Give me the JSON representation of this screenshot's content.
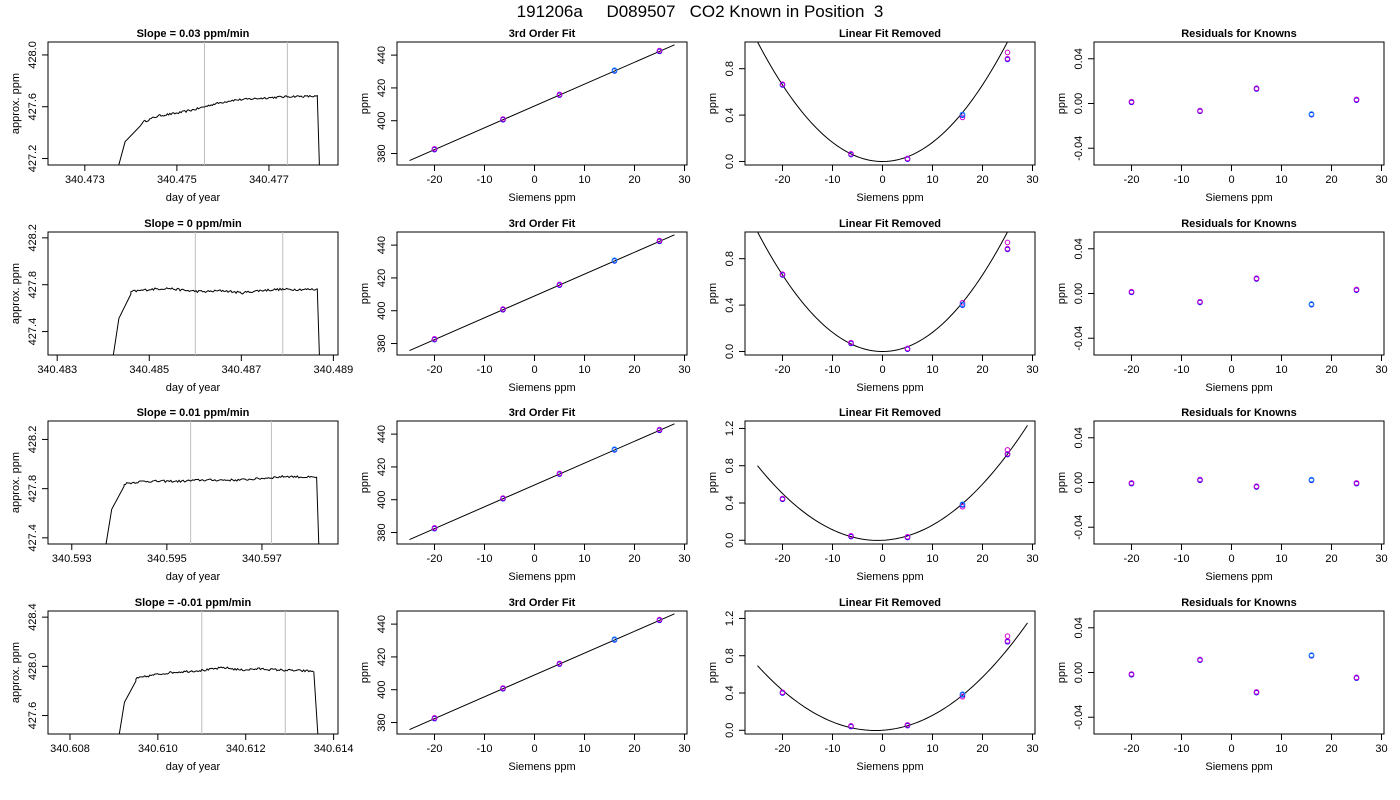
{
  "page_title": "191206a     D089507   CO2 Known in Position  3",
  "chart_data": [
    {
      "row": 1,
      "col": 1,
      "type": "line",
      "title": "Slope =  0.03  ppm/min",
      "xlabel": "day of year",
      "ylabel": "approx. ppm",
      "xlim": [
        340.4722,
        340.4785
      ],
      "ylim": [
        427.15,
        428.1
      ],
      "xticks": [
        340.473,
        340.475,
        340.477
      ],
      "xticklabels": [
        "340.473",
        "340.475",
        "340.477"
      ],
      "yticks": [
        427.2,
        427.6,
        428.0
      ],
      "yticklabels": [
        "427.2",
        "427.6",
        "428.0"
      ],
      "vlines": [
        340.4756,
        340.4774
      ],
      "rise_x": [
        340.4737,
        340.4742
      ],
      "rise_y": [
        427.15,
        427.45
      ],
      "plateau_start": 340.47425,
      "plateau_end": 340.47805,
      "plateau_points": [
        [
          340.47425,
          427.48
        ],
        [
          340.4746,
          427.53
        ],
        [
          340.475,
          427.55
        ],
        [
          340.4754,
          427.58
        ],
        [
          340.4758,
          427.62
        ],
        [
          340.4762,
          427.65
        ],
        [
          340.4766,
          427.66
        ],
        [
          340.477,
          427.67
        ],
        [
          340.4775,
          427.68
        ],
        [
          340.47805,
          427.68
        ]
      ],
      "drop_x": 340.4781,
      "noise": 0.008
    },
    {
      "row": 1,
      "col": 2,
      "type": "scatter",
      "title": "3rd Order Fit",
      "xlabel": "Siemens ppm",
      "ylabel": "ppm",
      "xlim": [
        -27.5,
        30.5
      ],
      "ylim": [
        373,
        448
      ],
      "xticks": [
        -20,
        -10,
        0,
        10,
        20,
        30
      ],
      "yticks": [
        380,
        400,
        420,
        440
      ],
      "curve": [
        [
          -25,
          375.7
        ],
        [
          28,
          446.3
        ]
      ],
      "points": [
        [
          -20,
          382.4
        ],
        [
          -6.3,
          400.6
        ],
        [
          5.0,
          415.6
        ],
        [
          16.0,
          430.4
        ],
        [
          25.0,
          442.3
        ]
      ]
    },
    {
      "row": 1,
      "col": 3,
      "type": "scatter",
      "title": "Linear Fit Removed",
      "xlabel": "Siemens ppm",
      "ylabel": "ppm",
      "xlim": [
        -27.5,
        30.5
      ],
      "ylim": [
        -0.03,
        1.03
      ],
      "xticks": [
        -20,
        -10,
        0,
        10,
        20,
        30
      ],
      "yticks": [
        0.0,
        0.4,
        0.8
      ],
      "yticklabels": [
        "0.0",
        "0.4",
        "0.8"
      ],
      "curve_coef": 0.00165,
      "curve_x": [
        -25,
        28
      ],
      "points": [
        [
          -20,
          0.66
        ],
        [
          -6.3,
          0.06
        ],
        [
          5.0,
          0.02
        ],
        [
          16.0,
          0.4
        ],
        [
          25.0,
          0.88
        ]
      ],
      "points_alt": [
        [
          16.0,
          0.38
        ],
        [
          25.0,
          0.94
        ]
      ]
    },
    {
      "row": 1,
      "col": 4,
      "type": "scatter",
      "title": "Residuals for Knowns",
      "xlabel": "Siemens ppm",
      "ylabel": "ppm",
      "xlim": [
        -27.5,
        30.5
      ],
      "ylim": [
        -0.055,
        0.055
      ],
      "xticks": [
        -20,
        -10,
        0,
        10,
        20,
        30
      ],
      "yticks": [
        -0.04,
        0.0,
        0.04
      ],
      "yticklabels": [
        "-0.04",
        "0.00",
        "0.04"
      ],
      "points": [
        [
          -20,
          0.001
        ],
        [
          -6.3,
          -0.007
        ],
        [
          5.0,
          0.013
        ],
        [
          16.0,
          -0.01
        ],
        [
          25.0,
          0.003
        ]
      ]
    },
    {
      "row": 2,
      "col": 1,
      "type": "line",
      "title": "Slope =  0  ppm/min",
      "xlabel": "day of year",
      "ylabel": "approx. ppm",
      "xlim": [
        340.4828,
        340.4891
      ],
      "ylim": [
        427.2,
        428.25
      ],
      "xticks": [
        340.483,
        340.485,
        340.487,
        340.489
      ],
      "xticklabels": [
        "340.483",
        "340.485",
        "340.487",
        "340.489"
      ],
      "yticks": [
        427.4,
        427.8,
        428.2
      ],
      "yticklabels": [
        "427.4",
        "427.8",
        "428.2"
      ],
      "vlines": [
        340.486,
        340.4879
      ],
      "rise_x": [
        340.4842,
        340.4846
      ],
      "rise_y": [
        427.2,
        427.72
      ],
      "plateau_start": 340.4846,
      "plateau_end": 340.48865,
      "plateau_points": [
        [
          340.4846,
          427.74
        ],
        [
          340.485,
          427.76
        ],
        [
          340.4854,
          427.77
        ],
        [
          340.4858,
          427.75
        ],
        [
          340.4862,
          427.74
        ],
        [
          340.4866,
          427.75
        ],
        [
          340.487,
          427.73
        ],
        [
          340.4874,
          427.75
        ],
        [
          340.4878,
          427.76
        ],
        [
          340.48865,
          427.76
        ]
      ],
      "drop_x": 340.4887,
      "noise": 0.01
    },
    {
      "row": 2,
      "col": 2,
      "type": "scatter",
      "title": "3rd Order Fit",
      "xlabel": "Siemens ppm",
      "ylabel": "ppm",
      "xlim": [
        -27.5,
        30.5
      ],
      "ylim": [
        373,
        448
      ],
      "xticks": [
        -20,
        -10,
        0,
        10,
        20,
        30
      ],
      "yticks": [
        380,
        400,
        420,
        440
      ],
      "curve": [
        [
          -25,
          375.7
        ],
        [
          28,
          446.3
        ]
      ],
      "points": [
        [
          -20,
          382.4
        ],
        [
          -6.3,
          400.6
        ],
        [
          5.0,
          415.6
        ],
        [
          16.0,
          430.4
        ],
        [
          25.0,
          442.3
        ]
      ]
    },
    {
      "row": 2,
      "col": 3,
      "type": "scatter",
      "title": "Linear Fit Removed",
      "xlabel": "Siemens ppm",
      "ylabel": "ppm",
      "xlim": [
        -27.5,
        30.5
      ],
      "ylim": [
        -0.03,
        1.03
      ],
      "xticks": [
        -20,
        -10,
        0,
        10,
        20,
        30
      ],
      "yticks": [
        0.0,
        0.4,
        0.8
      ],
      "yticklabels": [
        "0.0",
        "0.4",
        "0.8"
      ],
      "curve_coef": 0.00165,
      "curve_x": [
        -25,
        28
      ],
      "points": [
        [
          -20,
          0.66
        ],
        [
          -6.3,
          0.07
        ],
        [
          5.0,
          0.02
        ],
        [
          16.0,
          0.4
        ],
        [
          25.0,
          0.88
        ]
      ],
      "points_alt": [
        [
          16.0,
          0.42
        ],
        [
          25.0,
          0.94
        ]
      ]
    },
    {
      "row": 2,
      "col": 4,
      "type": "scatter",
      "title": "Residuals for Knowns",
      "xlabel": "Siemens ppm",
      "ylabel": "ppm",
      "xlim": [
        -27.5,
        30.5
      ],
      "ylim": [
        -0.055,
        0.055
      ],
      "xticks": [
        -20,
        -10,
        0,
        10,
        20,
        30
      ],
      "yticks": [
        -0.04,
        0.0,
        0.04
      ],
      "yticklabels": [
        "-0.04",
        "0.00",
        "0.04"
      ],
      "points": [
        [
          -20,
          0.001
        ],
        [
          -6.3,
          -0.008
        ],
        [
          5.0,
          0.013
        ],
        [
          16.0,
          -0.01
        ],
        [
          25.0,
          0.003
        ]
      ]
    },
    {
      "row": 3,
      "col": 1,
      "type": "line",
      "title": "Slope =  0.01  ppm/min",
      "xlabel": "day of year",
      "ylabel": "approx. ppm",
      "xlim": [
        340.5925,
        340.5986
      ],
      "ylim": [
        427.35,
        428.35
      ],
      "xticks": [
        340.593,
        340.595,
        340.597
      ],
      "xticklabels": [
        "340.593",
        "340.595",
        "340.597"
      ],
      "yticks": [
        427.4,
        427.8,
        428.2
      ],
      "yticklabels": [
        "427.4",
        "427.8",
        "428.2"
      ],
      "vlines": [
        340.5955,
        340.5972
      ],
      "rise_x": [
        340.5937,
        340.5941
      ],
      "rise_y": [
        427.35,
        427.82
      ],
      "plateau_start": 340.5941,
      "plateau_end": 340.59815,
      "plateau_points": [
        [
          340.5941,
          427.84
        ],
        [
          340.5945,
          427.86
        ],
        [
          340.5949,
          427.86
        ],
        [
          340.5953,
          427.86
        ],
        [
          340.5957,
          427.87
        ],
        [
          340.5961,
          427.87
        ],
        [
          340.5965,
          427.87
        ],
        [
          340.5969,
          427.88
        ],
        [
          340.5975,
          427.9
        ],
        [
          340.59815,
          427.89
        ]
      ],
      "drop_x": 340.5982,
      "noise": 0.009
    },
    {
      "row": 3,
      "col": 2,
      "type": "scatter",
      "title": "3rd Order Fit",
      "xlabel": "Siemens ppm",
      "ylabel": "ppm",
      "xlim": [
        -27.5,
        30.5
      ],
      "ylim": [
        373,
        448
      ],
      "xticks": [
        -20,
        -10,
        0,
        10,
        20,
        30
      ],
      "yticks": [
        380,
        400,
        420,
        440
      ],
      "curve": [
        [
          -25,
          375.7
        ],
        [
          28,
          446.3
        ]
      ],
      "points": [
        [
          -20,
          382.4
        ],
        [
          -6.3,
          400.6
        ],
        [
          5.0,
          415.6
        ],
        [
          16.0,
          430.4
        ],
        [
          25.0,
          442.3
        ]
      ]
    },
    {
      "row": 3,
      "col": 3,
      "type": "scatter",
      "title": "Linear Fit Removed",
      "xlabel": "Siemens ppm",
      "ylabel": "ppm",
      "xlim": [
        -27.5,
        30.5
      ],
      "ylim": [
        -0.04,
        1.28
      ],
      "xticks": [
        -20,
        -10,
        0,
        10,
        20,
        30
      ],
      "yticks": [
        0.0,
        0.4,
        0.8,
        1.2
      ],
      "yticklabels": [
        "0.0",
        "0.4",
        "0.8",
        "1.2"
      ],
      "curve_coef": 0.00138,
      "curve_x": [
        -25,
        29
      ],
      "curve_slope": 0.0025,
      "points": [
        [
          -20,
          0.44
        ],
        [
          -6.3,
          0.04
        ],
        [
          5.0,
          0.03
        ],
        [
          16.0,
          0.38
        ],
        [
          25.0,
          0.92
        ]
      ],
      "points_alt": [
        [
          16.0,
          0.36
        ],
        [
          25.0,
          0.97
        ]
      ]
    },
    {
      "row": 3,
      "col": 4,
      "type": "scatter",
      "title": "Residuals for Knowns",
      "xlabel": "Siemens ppm",
      "ylabel": "ppm",
      "xlim": [
        -27.5,
        30.5
      ],
      "ylim": [
        -0.055,
        0.055
      ],
      "xticks": [
        -20,
        -10,
        0,
        10,
        20,
        30
      ],
      "yticks": [
        -0.04,
        0.0,
        0.04
      ],
      "yticklabels": [
        "-0.04",
        "0.00",
        "0.04"
      ],
      "points": [
        [
          -20,
          -0.001
        ],
        [
          -6.3,
          0.002
        ],
        [
          5.0,
          -0.004
        ],
        [
          16.0,
          0.002
        ],
        [
          25.0,
          -0.001
        ]
      ]
    },
    {
      "row": 4,
      "col": 1,
      "type": "line",
      "title": "Slope =  -0.01  ppm/min",
      "xlabel": "day of year",
      "ylabel": "approx. ppm",
      "xlim": [
        340.6075,
        340.6141
      ],
      "ylim": [
        427.45,
        428.45
      ],
      "xticks": [
        340.608,
        340.61,
        340.612,
        340.614
      ],
      "xticklabels": [
        "340.608",
        "340.610",
        "340.612",
        "340.614"
      ],
      "yticks": [
        427.6,
        428.0,
        428.4
      ],
      "yticklabels": [
        "427.6",
        "428.0",
        "428.4"
      ],
      "vlines": [
        340.611,
        340.6129
      ],
      "rise_x": [
        340.6091,
        340.6095
      ],
      "rise_y": [
        427.45,
        427.88
      ],
      "plateau_start": 340.6095,
      "plateau_end": 340.61355,
      "plateau_points": [
        [
          340.6095,
          427.9
        ],
        [
          340.6099,
          427.93
        ],
        [
          340.6103,
          427.95
        ],
        [
          340.6107,
          427.96
        ],
        [
          340.6111,
          427.97
        ],
        [
          340.6115,
          427.99
        ],
        [
          340.6119,
          427.97
        ],
        [
          340.6123,
          427.98
        ],
        [
          340.6128,
          427.97
        ],
        [
          340.61355,
          427.96
        ]
      ],
      "drop_x": 340.61365,
      "noise": 0.009
    },
    {
      "row": 4,
      "col": 2,
      "type": "scatter",
      "title": "3rd Order Fit",
      "xlabel": "Siemens ppm",
      "ylabel": "ppm",
      "xlim": [
        -27.5,
        30.5
      ],
      "ylim": [
        373,
        448
      ],
      "xticks": [
        -20,
        -10,
        0,
        10,
        20,
        30
      ],
      "yticks": [
        380,
        400,
        420,
        440
      ],
      "curve": [
        [
          -25,
          375.7
        ],
        [
          28,
          446.3
        ]
      ],
      "points": [
        [
          -20,
          382.4
        ],
        [
          -6.3,
          400.6
        ],
        [
          5.0,
          415.6
        ],
        [
          16.0,
          430.4
        ],
        [
          25.0,
          442.3
        ]
      ]
    },
    {
      "row": 4,
      "col": 3,
      "type": "scatter",
      "title": "Linear Fit Removed",
      "xlabel": "Siemens ppm",
      "ylabel": "ppm",
      "xlim": [
        -27.5,
        30.5
      ],
      "ylim": [
        -0.04,
        1.28
      ],
      "xticks": [
        -20,
        -10,
        0,
        10,
        20,
        30
      ],
      "yticks": [
        0.0,
        0.4,
        0.8,
        1.2
      ],
      "yticklabels": [
        "0.0",
        "0.4",
        "0.8",
        "1.2"
      ],
      "curve_coef": 0.00125,
      "curve_x": [
        -25,
        29
      ],
      "curve_slope": 0.0035,
      "points": [
        [
          -20,
          0.4
        ],
        [
          -6.3,
          0.04
        ],
        [
          5.0,
          0.05
        ],
        [
          16.0,
          0.38
        ],
        [
          25.0,
          0.95
        ]
      ],
      "points_alt": [
        [
          16.0,
          0.36
        ],
        [
          25.0,
          1.01
        ]
      ]
    },
    {
      "row": 4,
      "col": 4,
      "type": "scatter",
      "title": "Residuals for Knowns",
      "xlabel": "Siemens ppm",
      "ylabel": "ppm",
      "xlim": [
        -27.5,
        30.5
      ],
      "ylim": [
        -0.055,
        0.055
      ],
      "xticks": [
        -20,
        -10,
        0,
        10,
        20,
        30
      ],
      "yticks": [
        -0.04,
        0.0,
        0.04
      ],
      "yticklabels": [
        "-0.04",
        "0.00",
        "0.04"
      ],
      "points": [
        [
          -20,
          -0.002
        ],
        [
          -6.3,
          0.011
        ],
        [
          5.0,
          -0.018
        ],
        [
          16.0,
          0.015
        ],
        [
          25.0,
          -0.005
        ]
      ]
    }
  ],
  "colors": {
    "axis": "#000000",
    "vline": "#bebebe",
    "point_blue": "#0000ff",
    "point_light_blue": "#1e90ff",
    "point_magenta": "#d000d0",
    "curve": "#000000"
  }
}
